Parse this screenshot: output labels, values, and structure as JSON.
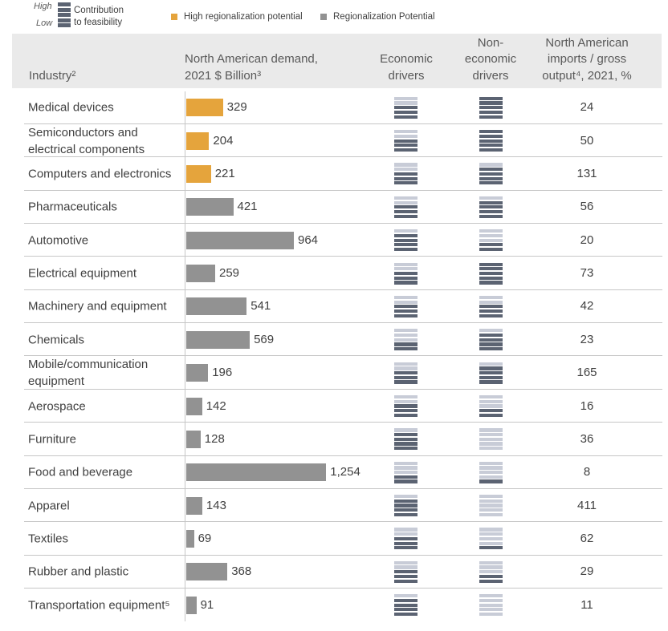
{
  "legend": {
    "scale_high": "High",
    "scale_low": "Low",
    "scale_label": "Contribution to feasibility",
    "items": [
      {
        "label": "High regionalization potential",
        "color": "#E5A43C"
      },
      {
        "label": "Regionalization Potential",
        "color": "#929292"
      }
    ]
  },
  "colors": {
    "driver_high": "#5B6372",
    "driver_low": "#C8CCD7"
  },
  "chart_data": {
    "type": "bar",
    "orientation": "horizontal",
    "legend_position": "top-left",
    "grid": false,
    "columns": {
      "industry": "Industry²",
      "demand": "North American demand, 2021 $ Billion³",
      "economic": "Economic drivers",
      "non_economic": "Non-economic drivers",
      "imports": "North American imports / gross output⁴, 2021, %"
    },
    "categories": [
      "Medical devices",
      "Semiconductors and electrical components",
      "Computers and electronics",
      "Pharmaceuticals",
      "Automotive",
      "Electrical equipment",
      "Machinery and equipment",
      "Chemicals",
      "Mobile/communication equipment",
      "Aerospace",
      "Furniture",
      "Food and beverage",
      "Apparel",
      "Textiles",
      "Rubber and plastic",
      "Transportation equipment⁵"
    ],
    "values": [
      329,
      204,
      221,
      421,
      964,
      259,
      541,
      569,
      196,
      142,
      128,
      1254,
      143,
      69,
      368,
      91
    ],
    "value_labels": [
      "329",
      "204",
      "221",
      "421",
      "964",
      "259",
      "541",
      "569",
      "196",
      "142",
      "128",
      "1,254",
      "143",
      "69",
      "368",
      "91"
    ],
    "high_regionalization_potential": [
      true,
      true,
      true,
      false,
      false,
      false,
      false,
      false,
      false,
      false,
      false,
      false,
      false,
      false,
      false,
      false
    ],
    "driver_segments": 5,
    "economic_drivers": [
      3,
      3,
      3,
      3,
      4,
      3,
      3,
      2,
      3,
      3,
      4,
      2,
      4,
      3,
      3,
      4
    ],
    "non_economic_drivers": [
      5,
      5,
      4,
      4,
      2,
      5,
      3,
      4,
      4,
      2,
      0,
      1,
      0,
      1,
      2,
      0
    ],
    "imports_share": [
      24,
      50,
      131,
      56,
      20,
      73,
      42,
      23,
      165,
      16,
      36,
      8,
      411,
      62,
      29,
      11
    ]
  }
}
